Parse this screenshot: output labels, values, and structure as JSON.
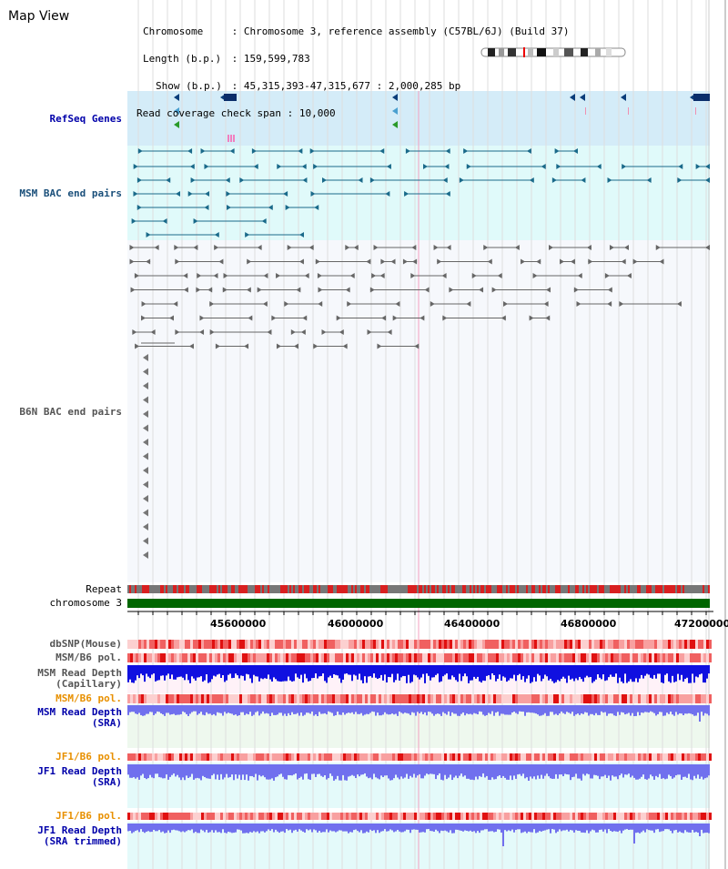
{
  "page_title": "Map View",
  "info": {
    "chromosome_key": "Chromosome",
    "chromosome_value": "Chromosome 3, reference assembly (C57BL/6J) (Build 37)",
    "length_key": "Length (b.p.)",
    "length_value": "159,599,783",
    "show_key": "Show (b.p.)",
    "show_value": "45,315,393-47,315,677 : 2,000,285 bp",
    "coverage_key": "Read coverage check span",
    "coverage_value": "10,000"
  },
  "tracks": {
    "refseq": "RefSeq Genes",
    "msm_bac": "MSM BAC end pairs",
    "b6n_bac": "B6N BAC end pairs",
    "repeat": "Repeat",
    "chromosome": "chromosome 3",
    "dbsnp": "dbSNP(Mouse)",
    "msm_b6_pol_1": "MSM/B6 pol.",
    "msm_depth_cap_1": "MSM Read Depth",
    "msm_depth_cap_2": "(Capillary)",
    "msm_b6_pol_2": "MSM/B6 pol.",
    "msm_depth_sra_1": "MSM Read Depth",
    "msm_depth_sra_2": "(SRA)",
    "jf1_b6_pol_1": "JF1/B6 pol.",
    "jf1_depth_sra_1": "JF1 Read Depth",
    "jf1_depth_sra_2": "(SRA)",
    "jf1_b6_pol_2": "JF1/B6 pol.",
    "jf1_depth_trim_1": "JF1 Read Depth",
    "jf1_depth_trim_2": "(SRA trimmed)"
  },
  "axis": {
    "ticks": [
      "45600000",
      "46000000",
      "46400000",
      "46800000",
      "47200000"
    ]
  },
  "colors": {
    "refseq_bg": "#d4ecf8",
    "msm_bac_bg": "#e0fafa",
    "chromosome_bar": "#006600",
    "depth_blue": "#1010e0",
    "depth_light": "#7070ee",
    "pol_red": "#ee3030"
  }
}
